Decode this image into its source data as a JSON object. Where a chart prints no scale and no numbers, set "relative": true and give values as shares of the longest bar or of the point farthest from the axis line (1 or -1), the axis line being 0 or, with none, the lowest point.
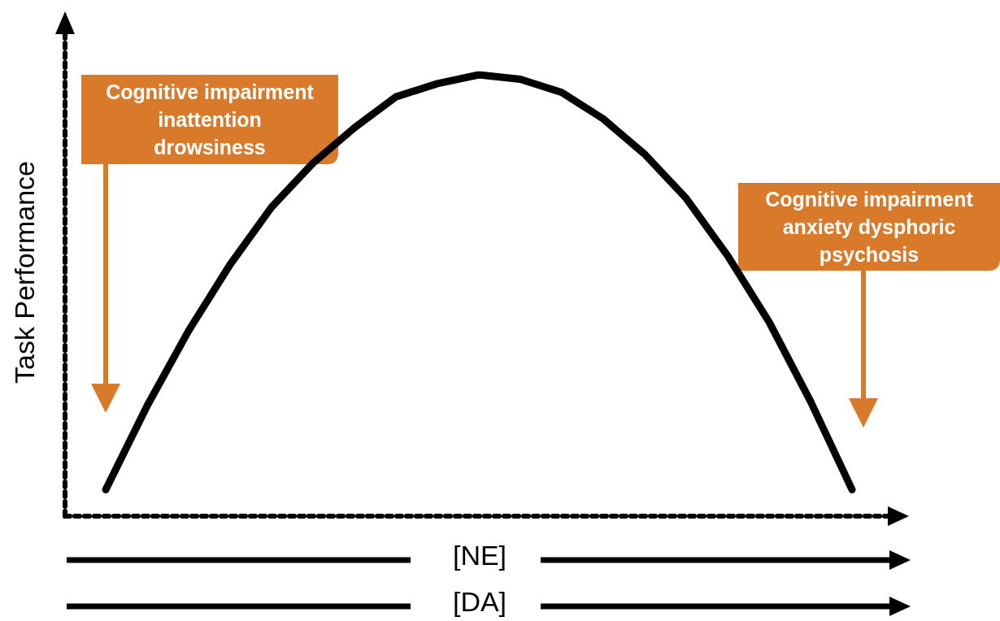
{
  "chart_data": {
    "type": "line",
    "relative": true,
    "ylabel": "Task Performance",
    "categories": [
      null,
      null,
      null,
      null,
      null,
      null,
      null,
      null,
      null,
      null,
      null,
      null,
      null,
      null,
      null,
      null,
      null,
      null,
      null
    ],
    "series": [
      {
        "color": "#000000",
        "values": [
          0.06,
          0.25,
          0.42,
          0.57,
          0.7,
          0.8,
          0.88,
          0.95,
          0.98,
          1.0,
          0.99,
          0.96,
          0.9,
          0.82,
          0.72,
          0.59,
          0.44,
          0.26,
          0.06
        ]
      }
    ],
    "annotations": [
      "Cognitive impairment\ninattention\ndrowsiness",
      "Cognitive impairment\nanxiety dysphoric\npsychosis",
      "[NE]",
      "[DA]"
    ],
    "grid": false,
    "line_style": "solid"
  }
}
